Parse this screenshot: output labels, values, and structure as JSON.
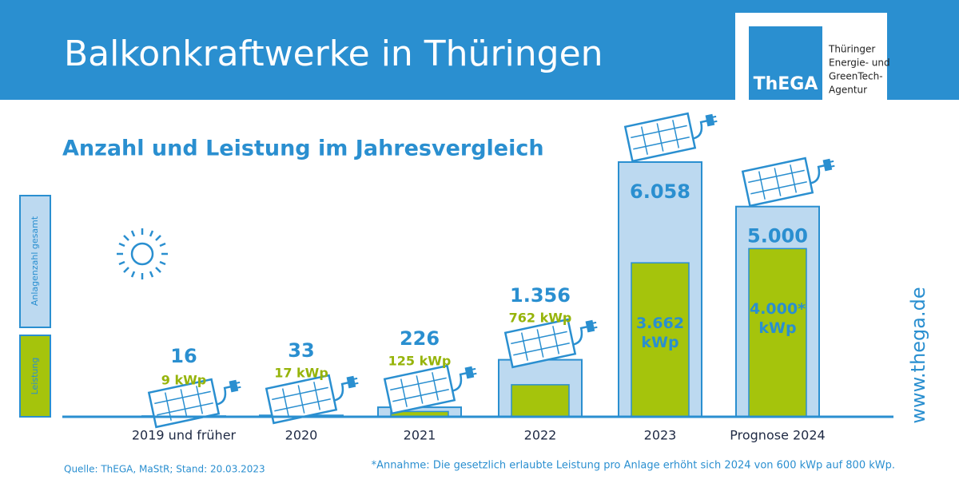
{
  "header": {
    "title": "Balkonkraftwerke in Thüringen",
    "logo": "ThEGA",
    "logo_text": [
      "Thüringer",
      "Energie- und",
      "GreenTech-",
      "Agentur"
    ]
  },
  "chart_data": {
    "type": "bar",
    "title": "Anzahl und Leistung im Jahresvergleich",
    "categories": [
      "2019 und früher",
      "2020",
      "2021",
      "2022",
      "2023",
      "Prognose 2024"
    ],
    "series": [
      {
        "name": "Anlagenzahl gesamt",
        "color": "#bcd9f0",
        "values": [
          16,
          33,
          226,
          1356,
          6058,
          5000
        ],
        "value_labels": [
          "16",
          "33",
          "226",
          "1.356",
          "6.058",
          "5.000"
        ]
      },
      {
        "name": "Leistung",
        "color": "#a5c40c",
        "values": [
          9,
          17,
          125,
          762,
          3662,
          4000
        ],
        "value_labels": [
          "9 kWp",
          "17 kWp",
          "125 kWp",
          "762 kWp",
          "3.662 kWp",
          "4.000* kWp"
        ]
      }
    ],
    "ylim": [
      0,
      6058
    ]
  },
  "website": "www.thega.de",
  "footer": {
    "source": "Quelle: ThEGA, MaStR; Stand: 20.03.2023",
    "note": "*Annahme: Die gesetzlich erlaubte Leistung pro Anlage erhöht sich 2024 von 600 kWp auf 800 kWp."
  }
}
